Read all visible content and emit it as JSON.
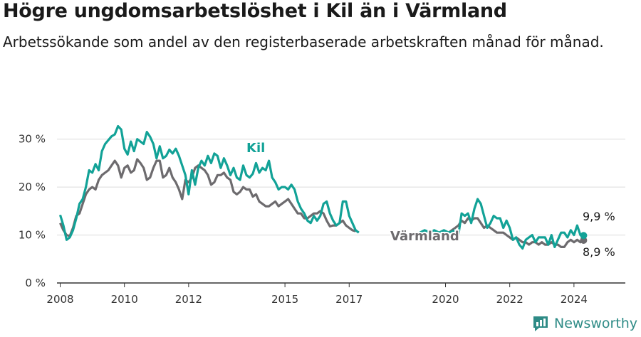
{
  "title": "Högre ungdomsarbetslöshet i Kil än i Värmland",
  "subtitle": "Arbetssökande som andel av den registerbaserade arbetskraften månad för månad.",
  "brand": "Newsworthy",
  "colors": {
    "kil": "#12a297",
    "varmland": "#6d6b6e",
    "grid": "#dcdcdc",
    "axis": "#333333",
    "brand": "#2e8b86"
  },
  "chart_data": {
    "type": "line",
    "title": "Högre ungdomsarbetslöshet i Kil än i Värmland",
    "ylim": [
      0,
      35
    ],
    "yticks": [
      0,
      10,
      20,
      30
    ],
    "ytick_labels": [
      "0 %",
      "10 %",
      "20 %",
      "30 %"
    ],
    "xlim": [
      2007.9,
      2025.6
    ],
    "xticks": [
      2008,
      2010,
      2012,
      2015,
      2017,
      2020,
      2022,
      2024
    ],
    "xtick_labels": [
      "2008",
      "2010",
      "2012",
      "2015",
      "2017",
      "2020",
      "2022",
      "2024"
    ],
    "grid": "horizontal",
    "series": [
      {
        "name": "Kil",
        "end_label": "9,9 %",
        "points": [
          [
            2008.0,
            14.2
          ],
          [
            2008.1,
            12.0
          ],
          [
            2008.2,
            9.0
          ],
          [
            2008.3,
            9.5
          ],
          [
            2008.4,
            11.0
          ],
          [
            2008.5,
            13.5
          ],
          [
            2008.6,
            16.5
          ],
          [
            2008.7,
            17.5
          ],
          [
            2008.8,
            20.0
          ],
          [
            2008.9,
            23.5
          ],
          [
            2009.0,
            23.0
          ],
          [
            2009.1,
            24.8
          ],
          [
            2009.2,
            23.5
          ],
          [
            2009.3,
            27.5
          ],
          [
            2009.4,
            29.0
          ],
          [
            2009.5,
            29.8
          ],
          [
            2009.6,
            30.6
          ],
          [
            2009.7,
            31.0
          ],
          [
            2009.8,
            32.7
          ],
          [
            2009.9,
            32.0
          ],
          [
            2010.0,
            28.0
          ],
          [
            2010.1,
            26.8
          ],
          [
            2010.2,
            29.5
          ],
          [
            2010.3,
            27.5
          ],
          [
            2010.4,
            30.0
          ],
          [
            2010.5,
            29.5
          ],
          [
            2010.6,
            29.0
          ],
          [
            2010.7,
            31.5
          ],
          [
            2010.8,
            30.5
          ],
          [
            2010.9,
            29.0
          ],
          [
            2011.0,
            26.0
          ],
          [
            2011.1,
            28.5
          ],
          [
            2011.2,
            26.0
          ],
          [
            2011.3,
            26.5
          ],
          [
            2011.4,
            27.8
          ],
          [
            2011.5,
            27.0
          ],
          [
            2011.6,
            28.0
          ],
          [
            2011.7,
            26.5
          ],
          [
            2011.8,
            24.5
          ],
          [
            2011.9,
            22.5
          ],
          [
            2012.0,
            18.5
          ],
          [
            2012.1,
            23.5
          ],
          [
            2012.2,
            20.5
          ],
          [
            2012.3,
            24.0
          ],
          [
            2012.4,
            25.5
          ],
          [
            2012.5,
            24.5
          ],
          [
            2012.6,
            26.5
          ],
          [
            2012.7,
            25.0
          ],
          [
            2012.8,
            27.0
          ],
          [
            2012.9,
            26.5
          ],
          [
            2013.0,
            24.0
          ],
          [
            2013.1,
            26.0
          ],
          [
            2013.2,
            24.5
          ],
          [
            2013.3,
            22.5
          ],
          [
            2013.4,
            24.0
          ],
          [
            2013.5,
            22.0
          ],
          [
            2013.6,
            21.5
          ],
          [
            2013.7,
            24.5
          ],
          [
            2013.8,
            22.5
          ],
          [
            2013.9,
            22.0
          ],
          [
            2014.0,
            22.8
          ],
          [
            2014.1,
            25.0
          ],
          [
            2014.2,
            23.0
          ],
          [
            2014.3,
            24.0
          ],
          [
            2014.4,
            23.5
          ],
          [
            2014.5,
            25.5
          ],
          [
            2014.6,
            22.0
          ],
          [
            2014.7,
            21.0
          ],
          [
            2014.8,
            19.5
          ],
          [
            2014.9,
            20.0
          ],
          [
            2015.0,
            20.0
          ],
          [
            2015.1,
            19.5
          ],
          [
            2015.2,
            20.5
          ],
          [
            2015.3,
            19.5
          ],
          [
            2015.4,
            17.0
          ],
          [
            2015.5,
            15.5
          ],
          [
            2015.6,
            14.5
          ],
          [
            2015.7,
            13.0
          ],
          [
            2015.8,
            12.5
          ],
          [
            2015.9,
            14.0
          ],
          [
            2016.0,
            13.0
          ],
          [
            2016.1,
            14.0
          ],
          [
            2016.2,
            16.5
          ],
          [
            2016.3,
            17.0
          ],
          [
            2016.4,
            14.5
          ],
          [
            2016.5,
            13.0
          ],
          [
            2016.6,
            12.0
          ],
          [
            2016.7,
            12.5
          ],
          [
            2016.8,
            17.0
          ],
          [
            2016.9,
            17.0
          ],
          [
            2017.0,
            14.0
          ],
          [
            2017.1,
            12.5
          ],
          [
            2017.2,
            11.0
          ],
          [
            2017.3,
            10.5
          ]
        ],
        "points2": [
          [
            2019.2,
            10.5
          ],
          [
            2019.35,
            11.0
          ],
          [
            2019.5,
            10.6
          ],
          [
            2019.65,
            11.0
          ],
          [
            2019.8,
            10.5
          ],
          [
            2019.95,
            11.0
          ],
          [
            2020.1,
            10.5
          ],
          [
            2020.3,
            11.0
          ],
          [
            2020.4,
            10.0
          ],
          [
            2020.5,
            14.5
          ],
          [
            2020.6,
            14.0
          ],
          [
            2020.7,
            14.5
          ],
          [
            2020.8,
            12.5
          ],
          [
            2020.9,
            15.5
          ],
          [
            2021.0,
            17.5
          ],
          [
            2021.1,
            16.5
          ],
          [
            2021.2,
            14.0
          ],
          [
            2021.3,
            11.5
          ],
          [
            2021.4,
            12.5
          ],
          [
            2021.5,
            14.0
          ],
          [
            2021.6,
            13.5
          ],
          [
            2021.7,
            13.5
          ],
          [
            2021.8,
            11.5
          ],
          [
            2021.9,
            13.0
          ],
          [
            2022.0,
            11.5
          ],
          [
            2022.1,
            9.0
          ],
          [
            2022.2,
            9.5
          ],
          [
            2022.3,
            8.0
          ],
          [
            2022.4,
            7.2
          ],
          [
            2022.5,
            9.0
          ],
          [
            2022.6,
            9.5
          ],
          [
            2022.7,
            10.0
          ],
          [
            2022.8,
            8.5
          ],
          [
            2022.9,
            9.5
          ],
          [
            2023.0,
            9.5
          ],
          [
            2023.1,
            9.5
          ],
          [
            2023.2,
            8.0
          ],
          [
            2023.3,
            10.0
          ],
          [
            2023.4,
            7.5
          ],
          [
            2023.5,
            9.0
          ],
          [
            2023.6,
            10.5
          ],
          [
            2023.7,
            10.5
          ],
          [
            2023.8,
            9.5
          ],
          [
            2023.9,
            11.0
          ],
          [
            2024.0,
            10.0
          ],
          [
            2024.1,
            12.0
          ],
          [
            2024.2,
            10.0
          ],
          [
            2024.3,
            9.9
          ]
        ]
      },
      {
        "name": "Värmland",
        "end_label": "8,9 %",
        "points": [
          [
            2008.0,
            12.5
          ],
          [
            2008.1,
            11.0
          ],
          [
            2008.2,
            10.0
          ],
          [
            2008.3,
            9.8
          ],
          [
            2008.4,
            11.5
          ],
          [
            2008.5,
            14.0
          ],
          [
            2008.6,
            14.5
          ],
          [
            2008.7,
            16.5
          ],
          [
            2008.8,
            18.5
          ],
          [
            2008.9,
            19.5
          ],
          [
            2009.0,
            20.0
          ],
          [
            2009.1,
            19.5
          ],
          [
            2009.2,
            21.5
          ],
          [
            2009.3,
            22.5
          ],
          [
            2009.4,
            23.0
          ],
          [
            2009.5,
            23.5
          ],
          [
            2009.6,
            24.5
          ],
          [
            2009.7,
            25.5
          ],
          [
            2009.8,
            24.5
          ],
          [
            2009.9,
            22.0
          ],
          [
            2010.0,
            24.0
          ],
          [
            2010.1,
            24.5
          ],
          [
            2010.2,
            23.0
          ],
          [
            2010.3,
            23.5
          ],
          [
            2010.4,
            25.8
          ],
          [
            2010.5,
            25.0
          ],
          [
            2010.6,
            24.0
          ],
          [
            2010.7,
            21.5
          ],
          [
            2010.8,
            22.0
          ],
          [
            2010.9,
            24.0
          ],
          [
            2011.0,
            25.5
          ],
          [
            2011.1,
            25.5
          ],
          [
            2011.2,
            22.0
          ],
          [
            2011.3,
            22.5
          ],
          [
            2011.4,
            24.0
          ],
          [
            2011.5,
            22.0
          ],
          [
            2011.6,
            21.0
          ],
          [
            2011.7,
            19.5
          ],
          [
            2011.8,
            17.5
          ],
          [
            2011.9,
            21.5
          ],
          [
            2012.0,
            21.0
          ],
          [
            2012.1,
            22.0
          ],
          [
            2012.2,
            24.0
          ],
          [
            2012.3,
            24.5
          ],
          [
            2012.4,
            24.0
          ],
          [
            2012.5,
            23.5
          ],
          [
            2012.6,
            22.5
          ],
          [
            2012.7,
            20.5
          ],
          [
            2012.8,
            21.0
          ],
          [
            2012.9,
            22.5
          ],
          [
            2013.0,
            22.5
          ],
          [
            2013.1,
            23.0
          ],
          [
            2013.2,
            22.0
          ],
          [
            2013.3,
            21.5
          ],
          [
            2013.4,
            19.0
          ],
          [
            2013.5,
            18.5
          ],
          [
            2013.6,
            19.0
          ],
          [
            2013.7,
            20.0
          ],
          [
            2013.8,
            19.5
          ],
          [
            2013.9,
            19.5
          ],
          [
            2014.0,
            18.0
          ],
          [
            2014.1,
            18.5
          ],
          [
            2014.2,
            17.0
          ],
          [
            2014.3,
            16.5
          ],
          [
            2014.4,
            16.0
          ],
          [
            2014.5,
            16.0
          ],
          [
            2014.6,
            16.5
          ],
          [
            2014.7,
            17.0
          ],
          [
            2014.8,
            16.0
          ],
          [
            2014.9,
            16.5
          ],
          [
            2015.0,
            17.0
          ],
          [
            2015.1,
            17.5
          ],
          [
            2015.2,
            16.5
          ],
          [
            2015.3,
            15.5
          ],
          [
            2015.4,
            14.5
          ],
          [
            2015.5,
            14.5
          ],
          [
            2015.6,
            13.5
          ],
          [
            2015.7,
            13.5
          ],
          [
            2015.8,
            14.0
          ],
          [
            2015.9,
            14.5
          ],
          [
            2016.0,
            14.5
          ],
          [
            2016.1,
            15.0
          ],
          [
            2016.2,
            14.5
          ],
          [
            2016.3,
            13.0
          ],
          [
            2016.4,
            11.8
          ],
          [
            2016.5,
            12.0
          ],
          [
            2016.6,
            12.0
          ],
          [
            2016.7,
            12.5
          ],
          [
            2016.8,
            13.0
          ],
          [
            2016.9,
            12.0
          ],
          [
            2017.0,
            11.5
          ],
          [
            2017.1,
            11.0
          ],
          [
            2017.2,
            10.8
          ]
        ],
        "points2": [
          [
            2019.8,
            10.2
          ],
          [
            2019.9,
            10.5
          ],
          [
            2020.0,
            10.0
          ],
          [
            2020.1,
            10.5
          ],
          [
            2020.2,
            11.0
          ],
          [
            2020.3,
            11.5
          ],
          [
            2020.4,
            12.0
          ],
          [
            2020.5,
            13.0
          ],
          [
            2020.6,
            12.5
          ],
          [
            2020.7,
            13.5
          ],
          [
            2020.8,
            13.0
          ],
          [
            2020.9,
            13.5
          ],
          [
            2021.0,
            13.5
          ],
          [
            2021.1,
            12.5
          ],
          [
            2021.2,
            11.5
          ],
          [
            2021.3,
            12.0
          ],
          [
            2021.4,
            11.5
          ],
          [
            2021.5,
            11.0
          ],
          [
            2021.6,
            10.5
          ],
          [
            2021.7,
            10.5
          ],
          [
            2021.8,
            10.5
          ],
          [
            2021.9,
            10.0
          ],
          [
            2022.0,
            9.5
          ],
          [
            2022.1,
            9.0
          ],
          [
            2022.2,
            9.5
          ],
          [
            2022.3,
            9.0
          ],
          [
            2022.4,
            8.5
          ],
          [
            2022.5,
            8.5
          ],
          [
            2022.6,
            8.0
          ],
          [
            2022.7,
            8.5
          ],
          [
            2022.8,
            8.5
          ],
          [
            2022.9,
            8.0
          ],
          [
            2023.0,
            8.5
          ],
          [
            2023.1,
            8.0
          ],
          [
            2023.2,
            8.0
          ],
          [
            2023.3,
            8.5
          ],
          [
            2023.4,
            8.0
          ],
          [
            2023.5,
            8.0
          ],
          [
            2023.6,
            7.5
          ],
          [
            2023.7,
            7.5
          ],
          [
            2023.8,
            8.5
          ],
          [
            2023.9,
            9.0
          ],
          [
            2024.0,
            8.5
          ],
          [
            2024.1,
            9.0
          ],
          [
            2024.2,
            8.5
          ],
          [
            2024.3,
            8.9
          ]
        ]
      }
    ]
  }
}
